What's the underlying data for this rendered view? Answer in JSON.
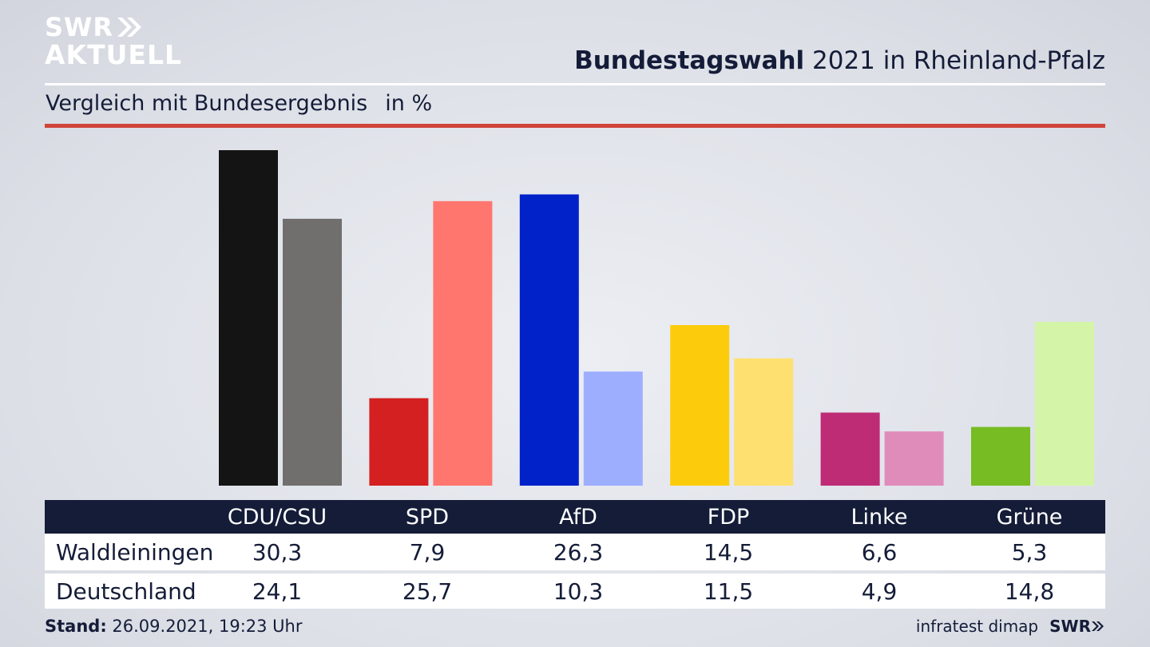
{
  "brand": {
    "logo_line1": "SWR",
    "logo_line2": "AKTUELL",
    "footer_logo": "SWR"
  },
  "header": {
    "title_bold": "Bundestagswahl",
    "title_rest": " 2021 in Rheinland-Pfalz"
  },
  "subtitle": {
    "text": "Vergleich mit Bundesergebnis",
    "unit": "in %"
  },
  "colors": {
    "accent_rule": "#d0443a",
    "navy": "#141c38"
  },
  "chart_data": {
    "type": "bar",
    "title": "Bundestagswahl 2021 in Rheinland-Pfalz",
    "subtitle": "Vergleich mit Bundesergebnis in %",
    "categories": [
      "CDU/CSU",
      "SPD",
      "AfD",
      "FDP",
      "Linke",
      "Grüne"
    ],
    "series": [
      {
        "name": "Waldleiningen",
        "values": [
          30.3,
          7.9,
          26.3,
          14.5,
          6.6,
          5.3
        ],
        "colors": [
          "#141414",
          "#d42020",
          "#0022c8",
          "#fccc0c",
          "#be2c76",
          "#76bc22"
        ]
      },
      {
        "name": "Deutschland",
        "values": [
          24.1,
          25.7,
          10.3,
          11.5,
          4.9,
          14.8
        ],
        "colors": [
          "#706f6d",
          "#ff766e",
          "#9eaeff",
          "#fde070",
          "#e08cbb",
          "#d4f5a8"
        ]
      }
    ],
    "ylim": [
      0,
      30.3
    ],
    "grid": false,
    "legend": "table below chart"
  },
  "table": {
    "headers": [
      "CDU/CSU",
      "SPD",
      "AfD",
      "FDP",
      "Linke",
      "Grüne"
    ],
    "rows": [
      {
        "label": "Waldleiningen",
        "values": [
          "30,3",
          "7,9",
          "26,3",
          "14,5",
          "6,6",
          "5,3"
        ]
      },
      {
        "label": "Deutschland",
        "values": [
          "24,1",
          "25,7",
          "10,3",
          "11,5",
          "4,9",
          "14,8"
        ]
      }
    ]
  },
  "footer": {
    "stand_label": "Stand:",
    "stand_value": " 26.09.2021, 19:23 Uhr",
    "source": "infratest dimap"
  }
}
